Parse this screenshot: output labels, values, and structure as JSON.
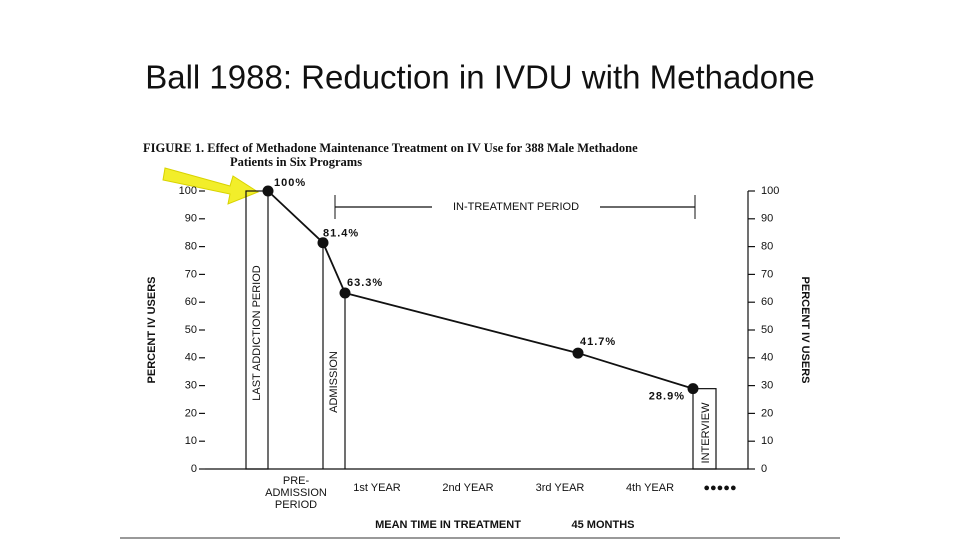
{
  "title": "Ball 1988: Reduction in IVDU with Methadone",
  "chart_data": {
    "type": "line",
    "caption": [
      "FIGURE 1. Effect of Methadone Maintenance Treatment on IV Use for 388 Male Methadone",
      "Patients in Six Programs"
    ],
    "ylabel": "PERCENT IV USERS",
    "y2label": "PERCENT IV USERS",
    "ylim": [
      0,
      100
    ],
    "yticks": [
      0,
      10,
      20,
      30,
      40,
      50,
      60,
      70,
      80,
      90,
      100
    ],
    "y2lim": [
      0,
      100
    ],
    "y2ticks": [
      0,
      10,
      20,
      30,
      40,
      50,
      60,
      70,
      80,
      90,
      100
    ],
    "categories": [
      "LAST ADDICTION PERIOD",
      "ADMISSION",
      null,
      null,
      "INTERVIEW"
    ],
    "values": [
      100,
      81.4,
      63.3,
      41.7,
      28.9
    ],
    "value_labels": [
      "100%",
      "81.4%",
      "63.3%",
      "41.7%",
      "28.9%"
    ],
    "color": "#111111",
    "periods": [
      [
        "PRE-",
        "ADMISSION",
        "PERIOD"
      ],
      [
        "1st YEAR"
      ],
      [
        "2nd YEAR"
      ],
      [
        "3rd YEAR"
      ],
      [
        "4th YEAR"
      ],
      [
        "●●●●●"
      ]
    ],
    "annotation": "IN-TREATMENT PERIOD",
    "xlabel": "MEAN TIME IN TREATMENT",
    "xlabel_note": "45 MONTHS"
  }
}
